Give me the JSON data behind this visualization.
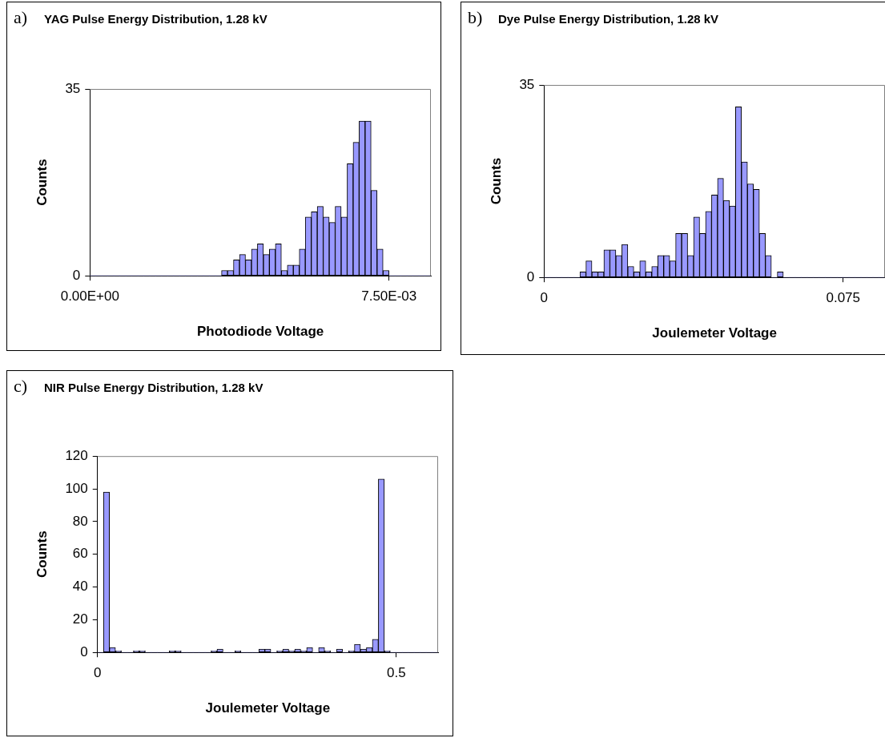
{
  "chart_data": [
    {
      "type": "histogram",
      "title": "YAG Pulse Energy Distribution, 1.28 kV",
      "annotations": [
        "a)"
      ],
      "xlabel": "Photodiode Voltage",
      "ylabel": "Counts",
      "color": "#9999ff",
      "bins": [
        0,
        0.00015,
        0.0003,
        0.00045,
        0.0006,
        0.00075,
        0.0009,
        0.00105,
        0.0012,
        0.00135,
        0.0015,
        0.00165,
        0.0018,
        0.00195,
        0.0021,
        0.00225,
        0.0024,
        0.00255,
        0.0027,
        0.00285,
        0.003,
        0.00315,
        0.0033,
        0.00345,
        0.0036,
        0.00375,
        0.0039,
        0.00405,
        0.0042,
        0.00435,
        0.0045,
        0.00465,
        0.0048,
        0.00495,
        0.0051,
        0.00525,
        0.0054,
        0.00555,
        0.0057,
        0.00585,
        0.006,
        0.00615,
        0.0063,
        0.00645,
        0.0066,
        0.00675,
        0.0069,
        0.00705,
        0.0072,
        0.00735,
        0.0075,
        0.00765,
        0.0078,
        0.00795,
        0.0081,
        0.00825,
        0.0084,
        0.00855
      ],
      "values": [
        0,
        0,
        0,
        0,
        0,
        0,
        0,
        0,
        0,
        0,
        0,
        0,
        0,
        0,
        0,
        0,
        0,
        0,
        0,
        0,
        0,
        0,
        1,
        1,
        3,
        4,
        3,
        5,
        6,
        4,
        5,
        6,
        1,
        2,
        2,
        5,
        11,
        12,
        13,
        11,
        10,
        13,
        11,
        21,
        25,
        29,
        29,
        16,
        5,
        1,
        0,
        0,
        0,
        0,
        0,
        0,
        0
      ],
      "xlim": [
        0,
        0.00855
      ],
      "xticks": [
        {
          "value": 0,
          "label": "0.00E+00"
        },
        {
          "value": 0.0075,
          "label": "7.50E-03"
        }
      ],
      "ylim": [
        0,
        35
      ],
      "yticks": [
        0,
        35
      ],
      "legend": false,
      "grid": false
    },
    {
      "type": "histogram",
      "title": "Dye Pulse Energy Distribution, 1.28 kV",
      "annotations": [
        "b)"
      ],
      "xlabel": "Joulemeter Voltage",
      "ylabel": "Counts",
      "color": "#9999ff",
      "bins": [
        0,
        0.0015,
        0.003,
        0.0045,
        0.006,
        0.0075,
        0.009,
        0.0105,
        0.012,
        0.0135,
        0.015,
        0.0165,
        0.018,
        0.0195,
        0.021,
        0.0225,
        0.024,
        0.0255,
        0.027,
        0.0285,
        0.03,
        0.0315,
        0.033,
        0.0345,
        0.036,
        0.0375,
        0.039,
        0.0405,
        0.042,
        0.0435,
        0.045,
        0.0465,
        0.048,
        0.0495,
        0.051,
        0.0525,
        0.054,
        0.0555,
        0.057,
        0.0585,
        0.06,
        0.0615,
        0.063,
        0.0645,
        0.066,
        0.0675,
        0.069,
        0.0705,
        0.072,
        0.0735,
        0.075,
        0.0765,
        0.078,
        0.0795,
        0.081,
        0.0825,
        0.084,
        0.0855
      ],
      "values": [
        0,
        0,
        0,
        0,
        0,
        0,
        1,
        3,
        1,
        1,
        5,
        5,
        4,
        6,
        2,
        1,
        3,
        1,
        2,
        4,
        4,
        3,
        8,
        8,
        4,
        11,
        8,
        12,
        15,
        18,
        14,
        13,
        31,
        21,
        17,
        16,
        8,
        4,
        0,
        1,
        0,
        0,
        0,
        0,
        0,
        0,
        0,
        0,
        0,
        0,
        0,
        0,
        0,
        0,
        0,
        0,
        0
      ],
      "xlim": [
        0,
        0.0855
      ],
      "xticks": [
        0,
        0.075
      ],
      "ylim": [
        0,
        35
      ],
      "yticks": [
        0,
        35
      ],
      "legend": false,
      "grid": false
    },
    {
      "type": "histogram",
      "title": "NIR Pulse Energy Distribution, 1.28 kV",
      "annotations": [
        "c)"
      ],
      "xlabel": "Joulemeter Voltage",
      "ylabel": "Counts",
      "color": "#9999ff",
      "bins": [
        0,
        0.01,
        0.02,
        0.03,
        0.04,
        0.05,
        0.06,
        0.07,
        0.08,
        0.09,
        0.1,
        0.11,
        0.12,
        0.13,
        0.14,
        0.15,
        0.16,
        0.17,
        0.18,
        0.19,
        0.2,
        0.21,
        0.22,
        0.23,
        0.24,
        0.25,
        0.26,
        0.27,
        0.28,
        0.29,
        0.3,
        0.31,
        0.32,
        0.33,
        0.34,
        0.35,
        0.36,
        0.37,
        0.38,
        0.39,
        0.4,
        0.41,
        0.42,
        0.43,
        0.44,
        0.45,
        0.46,
        0.47,
        0.48,
        0.49,
        0.5,
        0.51,
        0.52,
        0.53,
        0.54,
        0.55,
        0.56,
        0.57
      ],
      "values": [
        0,
        98,
        3,
        1,
        0,
        0,
        1,
        1,
        0,
        0,
        0,
        0,
        1,
        1,
        0,
        0,
        0,
        0,
        0,
        1,
        2,
        0,
        0,
        1,
        0,
        0,
        0,
        2,
        2,
        0,
        1,
        2,
        1,
        2,
        1,
        3,
        0,
        3,
        1,
        0,
        2,
        0,
        1,
        5,
        2,
        3,
        8,
        106,
        1,
        0,
        0,
        0,
        0,
        0,
        0,
        0,
        0
      ],
      "xlim": [
        0,
        0.57
      ],
      "xticks": [
        0,
        0.5
      ],
      "ylim": [
        0,
        120
      ],
      "yticks": [
        0,
        20,
        40,
        60,
        80,
        100,
        120
      ],
      "legend": false,
      "grid": false
    }
  ]
}
